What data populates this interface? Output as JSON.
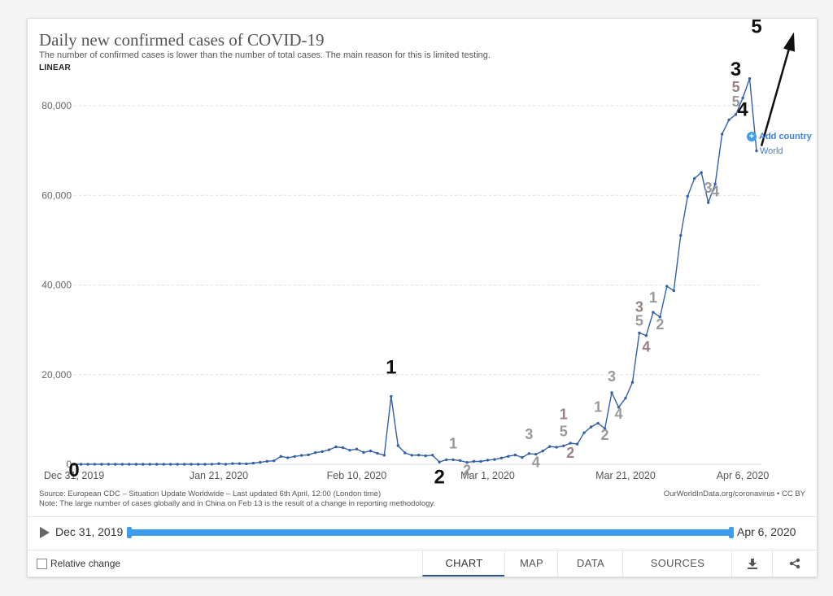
{
  "chart_data": {
    "type": "line",
    "title": "Daily new confirmed cases of COVID-19",
    "subtitle": "The number of confirmed cases is lower than the number of total cases. The main reason for this is limited testing.",
    "scale_label": "LINEAR",
    "series": [
      {
        "name": "World",
        "color": "#3360a9",
        "values": [
          27,
          0,
          0,
          17,
          0,
          15,
          0,
          0,
          0,
          0,
          0,
          0,
          0,
          0,
          0,
          0,
          0,
          0,
          0,
          0,
          17,
          136,
          19,
          151,
          140,
          97,
          259,
          441,
          665,
          787,
          1753,
          1466,
          1740,
          1980,
          2102,
          2590,
          2829,
          3235,
          3884,
          3694,
          3143,
          3385,
          2652,
          2973,
          2467,
          2015,
          15141,
          4156,
          2538,
          2007,
          2048,
          1886,
          2031,
          498,
          1017,
          1013,
          828,
          424,
          658,
          631,
          920,
          1077,
          1407,
          1769,
          2068,
          1519,
          2398,
          2239,
          2969,
          3956,
          3802,
          4103,
          4714,
          4512,
          7041,
          8325,
          9152,
          7971,
          15980,
          12724,
          14775,
          18292,
          29299,
          28727,
          33920,
          32869,
          39708,
          38745,
          51041,
          59783,
          63771,
          65082,
          58394,
          62536,
          73642,
          76838,
          78040,
          81722,
          86034,
          69914
        ]
      }
    ],
    "x_tick_labels": [
      "Dec 31, 2019",
      "Jan 21, 2020",
      "Feb 10, 2020",
      "Mar 1, 2020",
      "Mar 21, 2020",
      "Apr 6, 2020"
    ],
    "x_tick_index": [
      0,
      21,
      41,
      60,
      80,
      97
    ],
    "y_ticks": [
      0,
      20000,
      40000,
      60000,
      80000
    ],
    "y_tick_labels": [
      "0",
      "20,000",
      "40,000",
      "60,000",
      "80,000"
    ],
    "ylim": [
      0,
      86000
    ],
    "grid": true
  },
  "annotations": [
    {
      "text": "0",
      "color": "#111",
      "index": 0,
      "dy": 15
    },
    {
      "text": "1",
      "color": "#111",
      "index": 46,
      "dy": -28
    },
    {
      "text": "2",
      "color": "#111",
      "index": 53,
      "dy": 26
    },
    {
      "text": "1",
      "color": "#999",
      "index": 55,
      "dy": -14
    },
    {
      "text": "2",
      "color": "#999",
      "index": 57,
      "dy": 16
    },
    {
      "text": "3",
      "color": "#999",
      "index": 66,
      "dy": -18
    },
    {
      "text": "4",
      "color": "#999",
      "index": 67,
      "dy": 16
    },
    {
      "text": "1",
      "color": "#9a8080",
      "index": 71,
      "dy": -33
    },
    {
      "text": "5",
      "color": "#999",
      "index": 71,
      "dy": -12
    },
    {
      "text": "2",
      "color": "#9a8080",
      "index": 72,
      "dy": 18
    },
    {
      "text": "1",
      "color": "#999",
      "index": 76,
      "dy": -14
    },
    {
      "text": "2",
      "color": "#999",
      "index": 77,
      "dy": 14
    },
    {
      "text": "3",
      "color": "#999",
      "index": 78,
      "dy": -14
    },
    {
      "text": "4",
      "color": "#999",
      "index": 79,
      "dy": 14
    },
    {
      "text": "3",
      "color": "#9a8080",
      "index": 82,
      "dy": -26
    },
    {
      "text": "5",
      "color": "#999",
      "index": 82,
      "dy": -9
    },
    {
      "text": "4",
      "color": "#9a8080",
      "index": 83,
      "dy": 20
    },
    {
      "text": "1",
      "color": "#999",
      "index": 84,
      "dy": -12
    },
    {
      "text": "2",
      "color": "#999",
      "index": 85,
      "dy": 15
    },
    {
      "text": "3",
      "color": "#999",
      "index": 92,
      "dy": -12
    },
    {
      "text": "4",
      "color": "#999",
      "index": 93,
      "dy": 15
    },
    {
      "text": "3",
      "color": "#111",
      "index": 96,
      "dy": -48
    },
    {
      "text": "5",
      "color": "#9a8080",
      "index": 96,
      "dy": -28
    },
    {
      "text": "5",
      "color": "#999",
      "index": 96,
      "dy": -10
    },
    {
      "text": "4",
      "color": "#111",
      "index": 97,
      "dy": 22
    },
    {
      "text": "5",
      "color": "#111",
      "index": 99,
      "dy": -145
    }
  ],
  "add_country": "Add country",
  "series_label": "World",
  "source_line1": "Source: European CDC – Situation Update Worldwide – Last updated 6th April, 12:00 (London time)",
  "source_line2": "Note: The large number of cases globally and in China on Feb 13 is the result of a change in reporting methodology.",
  "owid_credit": "OurWorldInData.org/coronavirus • CC BY",
  "timeline": {
    "start": "Dec 31, 2019",
    "end": "Apr 6, 2020"
  },
  "footer": {
    "relative_change": "Relative change",
    "tabs": [
      "CHART",
      "MAP",
      "DATA",
      "SOURCES"
    ]
  },
  "icons": {
    "download": "download-icon",
    "share": "share-icon",
    "play": "play-icon"
  }
}
